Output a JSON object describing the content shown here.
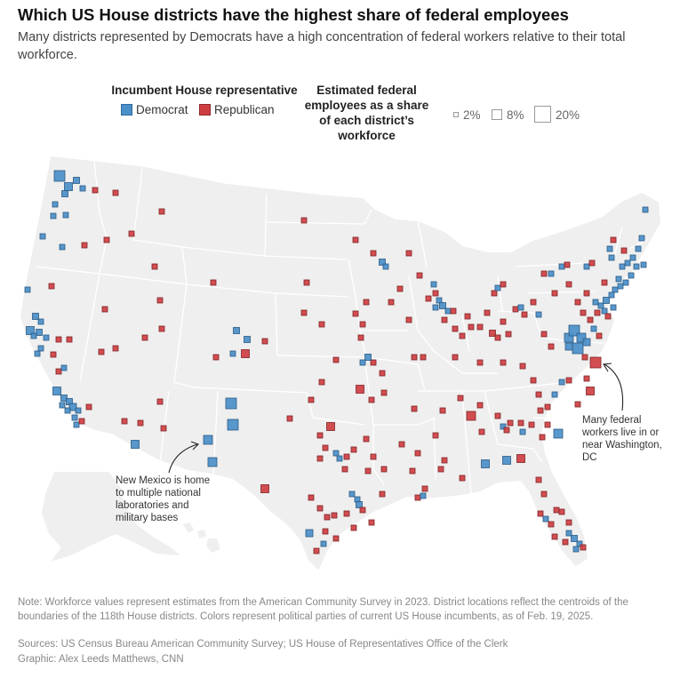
{
  "title": "Which US House districts have the highest share of federal employees",
  "subtitle": "Many districts represented by Democrats have a high concentration of federal workers relative to their total workforce.",
  "legend": {
    "party_title": "Incumbent House representative",
    "democrat_label": "Democrat",
    "republican_label": "Republican",
    "size_title": "Estimated federal employees as a share of each district’s workforce",
    "size_title_lines": [
      "Estimated federal",
      "employees as a share",
      "of each district’s",
      "workforce"
    ],
    "sizes": [
      {
        "label": "2%",
        "value": 2
      },
      {
        "label": "8%",
        "value": 8
      },
      {
        "label": "20%",
        "value": 20
      }
    ]
  },
  "colors": {
    "democrat": "#4b8fc8",
    "republican": "#cf3f42",
    "land": "#efefef",
    "state_border": "#ffffff"
  },
  "annotations": {
    "dc": "Many federal workers live in or near Washington, DC",
    "dc_lines": [
      "Many federal",
      "workers live in or",
      "near Washington,",
      "DC"
    ],
    "new_mexico": "New Mexico is home to multiple national laboratories and military bases",
    "nm_lines": [
      "New Mexico is home",
      "to multiple national",
      "laboratories and",
      "military bases"
    ]
  },
  "note": "Note: Workforce values represent estimates from the American Community Survey in 2023. District locations reflect the centroids of the boundaries of the 118th House districts. Colors represent political parties of current US House incumbents, as of Feb. 19, 2025.",
  "sources": "Sources: US Census Bureau American Community Survey; US House of Representatives Office of the Clerk",
  "credit": "Graphic: Alex Leeds Matthews, CNN"
}
